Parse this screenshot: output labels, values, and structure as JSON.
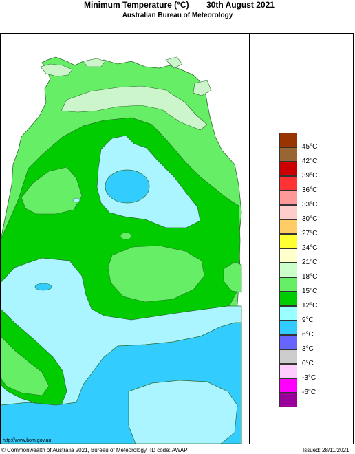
{
  "header": {
    "title": "Minimum Temperature (°C)",
    "date": "30th August 2021",
    "subtitle": "Australian Bureau of Meteorology"
  },
  "map": {
    "colors": {
      "ocean": "#ffffff",
      "band_21_24": "#ccf5cc",
      "band_18_21": "#66ee66",
      "band_15_18": "#00cc00",
      "band_12_15": "#aaf5ff",
      "band_9_12": "#33ccff",
      "outline": "#2e6b2e"
    }
  },
  "legend": {
    "items": [
      {
        "label": "45°C",
        "color": "#993300"
      },
      {
        "label": "42°C",
        "color": "#996633"
      },
      {
        "label": "39°C",
        "color": "#cc0000"
      },
      {
        "label": "36°C",
        "color": "#ff3333"
      },
      {
        "label": "33°C",
        "color": "#ff9999"
      },
      {
        "label": "30°C",
        "color": "#ffcccc"
      },
      {
        "label": "27°C",
        "color": "#ffcc66"
      },
      {
        "label": "24°C",
        "color": "#ffff33"
      },
      {
        "label": "21°C",
        "color": "#ffffcc"
      },
      {
        "label": "18°C",
        "color": "#ccffcc"
      },
      {
        "label": "15°C",
        "color": "#66ee66"
      },
      {
        "label": "12°C",
        "color": "#00cc00"
      },
      {
        "label": "9°C",
        "color": "#99ffff"
      },
      {
        "label": "6°C",
        "color": "#33ccff"
      },
      {
        "label": "3°C",
        "color": "#6666ff"
      },
      {
        "label": "0°C",
        "color": "#cccccc"
      },
      {
        "label": "-3°C",
        "color": "#ffccff"
      },
      {
        "label": "-6°C",
        "color": "#ff00ff"
      },
      {
        "label": "",
        "color": "#990099"
      }
    ]
  },
  "footer": {
    "url": "http://www.bom.gov.au",
    "copyright": "© Commonwealth of Australia 2021, Bureau of Meteorology",
    "id_code": "ID code: AWAP",
    "issued": "Issued: 28/11/2021"
  }
}
